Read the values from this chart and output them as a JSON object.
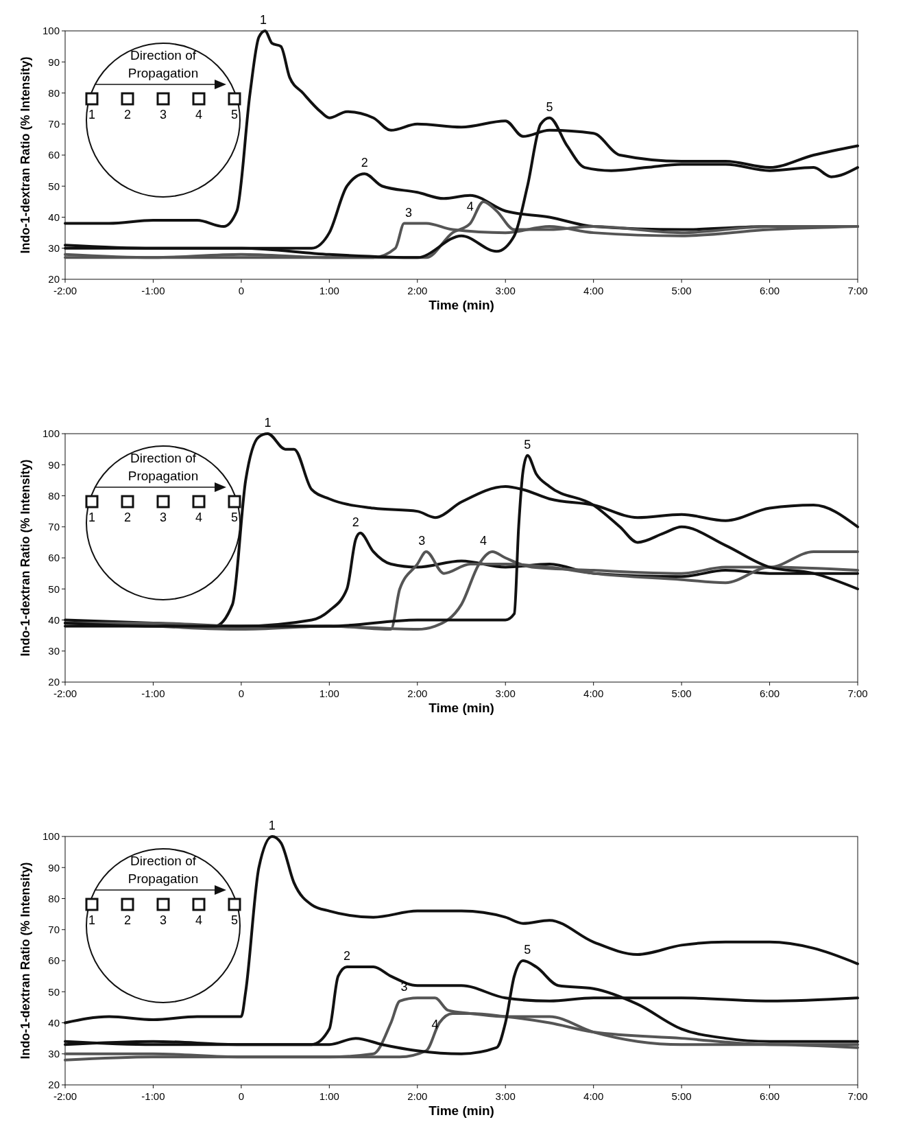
{
  "chart_data": [
    {
      "type": "line",
      "xlabel": "Time (min)",
      "ylabel": "Indo-1-dextran Ratio (% Intensity)",
      "xlim": [
        -2,
        7
      ],
      "ylim": [
        20,
        100
      ],
      "xticks": [
        {
          "value": -2,
          "label": "-2:00"
        },
        {
          "value": -1,
          "label": "-1:00"
        },
        {
          "value": 0,
          "label": "0"
        },
        {
          "value": 1,
          "label": "1:00"
        },
        {
          "value": 2,
          "label": "2:00"
        },
        {
          "value": 3,
          "label": "3:00"
        },
        {
          "value": 4,
          "label": "4:00"
        },
        {
          "value": 5,
          "label": "5:00"
        },
        {
          "value": 6,
          "label": "6:00"
        },
        {
          "value": 7,
          "label": "7:00"
        }
      ],
      "yticks": [
        20,
        30,
        40,
        50,
        60,
        70,
        80,
        90,
        100
      ],
      "grid": false,
      "annotations": [
        "Direction of Propagation",
        "1",
        "2",
        "3",
        "4",
        "5",
        {
          "text": "1",
          "x": 0.25,
          "y": 100
        },
        {
          "text": "2",
          "x": 1.4,
          "y": 54
        },
        {
          "text": "3",
          "x": 1.9,
          "y": 38
        },
        {
          "text": "4",
          "x": 2.6,
          "y": 40
        },
        {
          "text": "5",
          "x": 3.5,
          "y": 72
        }
      ],
      "series": [
        {
          "color": "#111111",
          "x": [
            -2,
            -1.5,
            -1,
            -0.5,
            -0.2,
            -0.05,
            0.1,
            0.2,
            0.27,
            0.35,
            0.45,
            0.55,
            0.7,
            0.9,
            1.0,
            1.2,
            1.5,
            1.7,
            2.0,
            2.5,
            3.0,
            3.2,
            3.5,
            4.0,
            4.3,
            5.0,
            5.5,
            6.0,
            6.5,
            7.0
          ],
          "values": [
            38,
            38,
            39,
            39,
            37,
            42,
            80,
            98,
            100,
            96,
            95,
            85,
            80,
            74,
            72,
            74,
            72,
            68,
            70,
            69,
            71,
            66,
            68,
            67,
            60,
            58,
            58,
            56,
            60,
            63
          ]
        },
        {
          "color": "#111111",
          "x": [
            -2,
            -1,
            0,
            0.8,
            1.0,
            1.2,
            1.4,
            1.6,
            2.0,
            2.3,
            2.6,
            3.0,
            3.5,
            4,
            5,
            6,
            7
          ],
          "values": [
            31,
            30,
            30,
            30,
            35,
            50,
            54,
            50,
            48,
            46,
            47,
            42,
            40,
            37,
            36,
            37,
            37
          ]
        },
        {
          "color": "#555555",
          "x": [
            -2,
            -1,
            0,
            1,
            1.5,
            1.75,
            1.85,
            2.1,
            2.4,
            3,
            3.5,
            4,
            5,
            6,
            7
          ],
          "values": [
            28,
            27,
            28,
            27,
            27,
            30,
            38,
            38,
            36,
            35,
            37,
            35,
            34,
            36,
            37
          ]
        },
        {
          "color": "#555555",
          "x": [
            -2,
            -1,
            0,
            1,
            2.1,
            2.4,
            2.6,
            2.75,
            2.9,
            3.1,
            3.5,
            4,
            5,
            6,
            7
          ],
          "values": [
            27,
            27,
            27,
            27,
            27,
            35,
            38,
            45,
            42,
            36,
            36,
            37,
            35,
            37,
            37
          ]
        },
        {
          "color": "#111111",
          "x": [
            -2,
            -1,
            0,
            1,
            2,
            2.5,
            2.9,
            3.1,
            3.25,
            3.4,
            3.5,
            3.7,
            3.9,
            4.2,
            4.6,
            5,
            5.5,
            6,
            6.5,
            6.7,
            7
          ],
          "values": [
            30,
            30,
            30,
            28,
            27,
            34,
            29,
            34,
            50,
            70,
            72,
            63,
            56,
            55,
            56,
            57,
            57,
            55,
            56,
            53,
            56
          ]
        }
      ]
    },
    {
      "type": "line",
      "xlabel": "Time (min)",
      "ylabel": "Indo-1-dextran Ratio (% Intensity)",
      "xlim": [
        -2,
        7
      ],
      "ylim": [
        20,
        100
      ],
      "xticks": [
        {
          "value": -2,
          "label": "-2:00"
        },
        {
          "value": -1,
          "label": "-1:00"
        },
        {
          "value": 0,
          "label": "0"
        },
        {
          "value": 1,
          "label": "1:00"
        },
        {
          "value": 2,
          "label": "2:00"
        },
        {
          "value": 3,
          "label": "3:00"
        },
        {
          "value": 4,
          "label": "4:00"
        },
        {
          "value": 5,
          "label": "5:00"
        },
        {
          "value": 6,
          "label": "6:00"
        },
        {
          "value": 7,
          "label": "7:00"
        }
      ],
      "yticks": [
        20,
        30,
        40,
        50,
        60,
        70,
        80,
        90,
        100
      ],
      "grid": false,
      "annotations": [
        "Direction of Propagation",
        "1",
        "2",
        "3",
        "4",
        "5",
        {
          "text": "1",
          "x": 0.3,
          "y": 100
        },
        {
          "text": "2",
          "x": 1.3,
          "y": 68
        },
        {
          "text": "3",
          "x": 2.05,
          "y": 62
        },
        {
          "text": "4",
          "x": 2.75,
          "y": 62
        },
        {
          "text": "5",
          "x": 3.25,
          "y": 93
        }
      ],
      "series": [
        {
          "color": "#111111",
          "x": [
            -2,
            -1,
            -0.3,
            -0.1,
            0.05,
            0.2,
            0.3,
            0.5,
            0.6,
            0.8,
            1.0,
            1.5,
            2.0,
            2.2,
            2.5,
            3.0,
            3.2,
            3.5,
            4,
            4.5,
            5,
            5.5,
            6,
            6.5,
            7
          ],
          "values": [
            40,
            39,
            38,
            45,
            85,
            99,
            100,
            95,
            95,
            82,
            79,
            76,
            75,
            73,
            78,
            83,
            82,
            79,
            77,
            73,
            74,
            72,
            76,
            77,
            70
          ]
        },
        {
          "color": "#111111",
          "x": [
            -2,
            -1,
            0,
            0.8,
            1.0,
            1.2,
            1.3,
            1.35,
            1.5,
            1.7,
            2,
            2.5,
            3,
            3.5,
            4,
            5,
            5.5,
            6,
            7
          ],
          "values": [
            38,
            38,
            38,
            40,
            43,
            50,
            66,
            68,
            62,
            58,
            57,
            59,
            57,
            58,
            55,
            54,
            56,
            55,
            55
          ]
        },
        {
          "color": "#555555",
          "x": [
            -2,
            -1,
            0,
            1,
            1.7,
            1.8,
            2.0,
            2.1,
            2.3,
            2.6,
            3,
            3.5,
            4,
            5,
            5.5,
            6,
            7
          ],
          "values": [
            39,
            38,
            37,
            38,
            37,
            50,
            58,
            62,
            55,
            58,
            58,
            57,
            55,
            53,
            52,
            57,
            56
          ]
        },
        {
          "color": "#555555",
          "x": [
            -2,
            -1,
            0,
            1,
            2,
            2.2,
            2.5,
            2.7,
            2.85,
            3.0,
            3.3,
            4,
            5,
            5.5,
            6,
            6.5,
            7
          ],
          "values": [
            39,
            39,
            38,
            38,
            37,
            38,
            45,
            58,
            62,
            60,
            57,
            56,
            55,
            57,
            57,
            62,
            62
          ]
        },
        {
          "color": "#111111",
          "x": [
            -2,
            -1,
            0,
            1,
            2,
            2.4,
            3,
            3.1,
            3.15,
            3.2,
            3.25,
            3.35,
            3.5,
            4,
            4.3,
            4.5,
            4.8,
            5,
            5.5,
            6,
            6.5,
            7
          ],
          "values": [
            39,
            38,
            38,
            38,
            40,
            40,
            40,
            42,
            70,
            88,
            93,
            87,
            83,
            77,
            70,
            65,
            68,
            70,
            64,
            57,
            55,
            50
          ]
        }
      ]
    },
    {
      "type": "line",
      "xlabel": "Time (min)",
      "ylabel": "Indo-1-dextran Ratio (% Intensity)",
      "xlim": [
        -2,
        7
      ],
      "ylim": [
        20,
        100
      ],
      "xticks": [
        {
          "value": -2,
          "label": "-2:00"
        },
        {
          "value": -1,
          "label": "-1:00"
        },
        {
          "value": 0,
          "label": "0"
        },
        {
          "value": 1,
          "label": "1:00"
        },
        {
          "value": 2,
          "label": "2:00"
        },
        {
          "value": 3,
          "label": "3:00"
        },
        {
          "value": 4,
          "label": "4:00"
        },
        {
          "value": 5,
          "label": "5:00"
        },
        {
          "value": 6,
          "label": "6:00"
        },
        {
          "value": 7,
          "label": "7:00"
        }
      ],
      "yticks": [
        20,
        30,
        40,
        50,
        60,
        70,
        80,
        90,
        100
      ],
      "grid": false,
      "annotations": [
        "Direction of Propagation",
        "1",
        "2",
        "3",
        "4",
        "5",
        {
          "text": "1",
          "x": 0.35,
          "y": 100
        },
        {
          "text": "2",
          "x": 1.2,
          "y": 58
        },
        {
          "text": "3",
          "x": 1.85,
          "y": 48
        },
        {
          "text": "4",
          "x": 2.2,
          "y": 36
        },
        {
          "text": "5",
          "x": 3.25,
          "y": 60
        }
      ],
      "series": [
        {
          "color": "#111111",
          "x": [
            -2,
            -1.5,
            -1,
            -0.5,
            0,
            0.05,
            0.2,
            0.35,
            0.45,
            0.6,
            0.8,
            1,
            1.5,
            2,
            2.5,
            3,
            3.2,
            3.5,
            4,
            4.5,
            5,
            5.5,
            6,
            6.5,
            7
          ],
          "values": [
            40,
            42,
            41,
            42,
            42,
            50,
            90,
            100,
            98,
            85,
            78,
            76,
            74,
            76,
            76,
            74,
            72,
            73,
            66,
            62,
            65,
            66,
            66,
            64,
            59
          ]
        },
        {
          "color": "#111111",
          "x": [
            -2,
            -1,
            0,
            0.8,
            1.0,
            1.1,
            1.2,
            1.5,
            1.7,
            2,
            2.5,
            3,
            3.5,
            4,
            5,
            6,
            7
          ],
          "values": [
            33,
            34,
            33,
            33,
            38,
            55,
            58,
            58,
            55,
            52,
            52,
            48,
            47,
            48,
            48,
            47,
            48
          ]
        },
        {
          "color": "#555555",
          "x": [
            -2,
            -1,
            0,
            1,
            1.5,
            1.7,
            1.8,
            2.0,
            2.2,
            2.35,
            2.6,
            3,
            3.5,
            4,
            4.5,
            5,
            6,
            7
          ],
          "values": [
            30,
            30,
            29,
            29,
            30,
            40,
            47,
            48,
            48,
            44,
            43,
            42,
            42,
            37,
            34,
            33,
            33,
            32
          ]
        },
        {
          "color": "#555555",
          "x": [
            -2,
            -1,
            0,
            1,
            1.8,
            2.1,
            2.25,
            2.4,
            2.6,
            3,
            3.5,
            4,
            5,
            6,
            7
          ],
          "values": [
            28,
            29,
            29,
            29,
            29,
            31,
            40,
            43,
            43,
            42,
            40,
            37,
            35,
            33,
            33
          ]
        },
        {
          "color": "#111111",
          "x": [
            -2,
            -1,
            0,
            1,
            1.3,
            1.6,
            2,
            2.5,
            2.9,
            3.0,
            3.1,
            3.2,
            3.35,
            3.6,
            4,
            4.5,
            5,
            5.5,
            6,
            7
          ],
          "values": [
            34,
            33,
            33,
            33,
            35,
            33,
            31,
            30,
            32,
            40,
            55,
            60,
            58,
            52,
            51,
            46,
            38,
            35,
            34,
            34
          ]
        }
      ]
    }
  ]
}
